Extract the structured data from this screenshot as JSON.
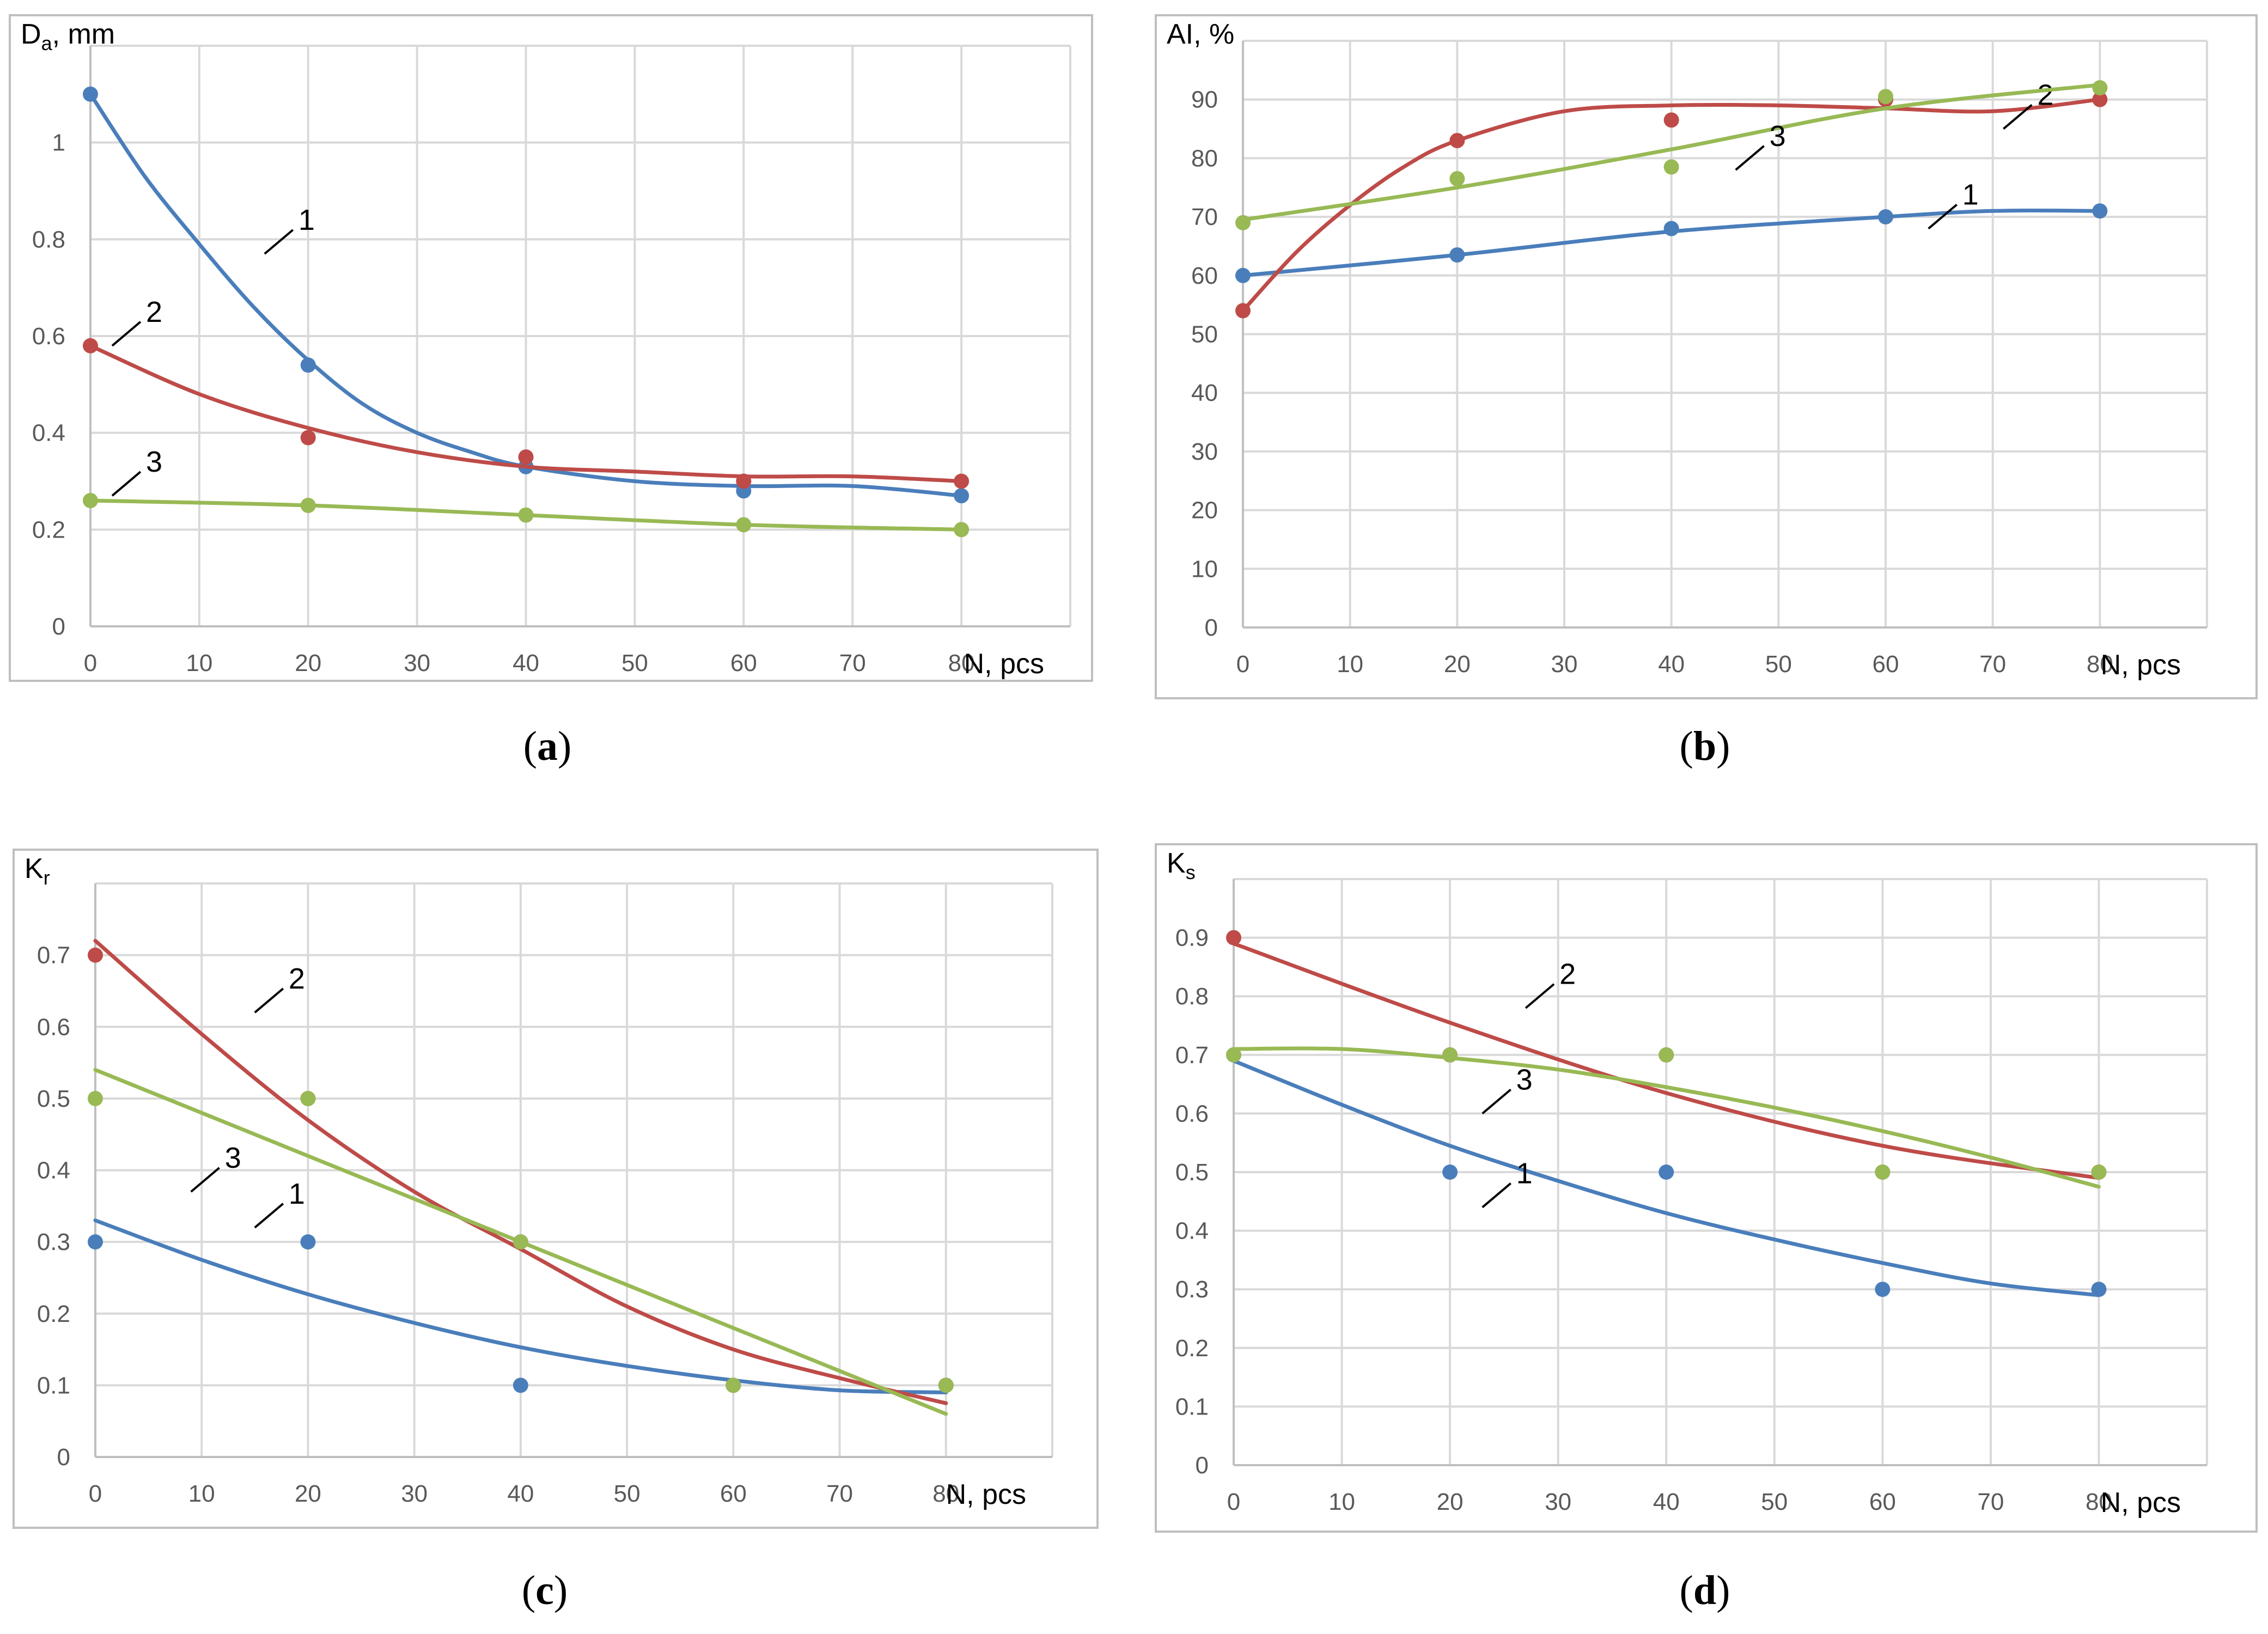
{
  "colors": {
    "series1": "#4a7ebb",
    "series2": "#be4b48",
    "series3": "#98b954"
  },
  "chart_data": [
    {
      "type": "scatter",
      "panel": "a",
      "caption": {
        "open": "(",
        "letter": "a",
        "close": ")"
      },
      "ylabel": {
        "main": "D",
        "sub": "a",
        "rest": ", mm"
      },
      "xlabel": "N, pcs",
      "xlim": [
        0,
        90
      ],
      "ylim": [
        0,
        1.2
      ],
      "xticks": [
        0,
        10,
        20,
        30,
        40,
        50,
        60,
        70,
        80
      ],
      "yticks": [
        0,
        0.2,
        0.4,
        0.6,
        0.8,
        1
      ],
      "ytick_labels": [
        "0",
        "0.2",
        "0.4",
        "0.6",
        "0.8",
        "1"
      ],
      "series": [
        {
          "name": "1",
          "color_key": "series1",
          "points": [
            [
              0,
              1.1
            ],
            [
              20,
              0.54
            ],
            [
              40,
              0.33
            ],
            [
              60,
              0.28
            ],
            [
              80,
              0.27
            ]
          ],
          "trend": [
            [
              0,
              1.1
            ],
            [
              5,
              0.93
            ],
            [
              10,
              0.79
            ],
            [
              15,
              0.66
            ],
            [
              20,
              0.55
            ],
            [
              25,
              0.46
            ],
            [
              30,
              0.4
            ],
            [
              35,
              0.36
            ],
            [
              40,
              0.33
            ],
            [
              50,
              0.3
            ],
            [
              60,
              0.29
            ],
            [
              70,
              0.29
            ],
            [
              80,
              0.27
            ]
          ],
          "label_at": [
            16,
            0.77
          ]
        },
        {
          "name": "2",
          "color_key": "series2",
          "points": [
            [
              0,
              0.58
            ],
            [
              20,
              0.39
            ],
            [
              40,
              0.35
            ],
            [
              60,
              0.3
            ],
            [
              80,
              0.3
            ]
          ],
          "trend": [
            [
              0,
              0.58
            ],
            [
              10,
              0.48
            ],
            [
              20,
              0.41
            ],
            [
              30,
              0.36
            ],
            [
              40,
              0.33
            ],
            [
              50,
              0.32
            ],
            [
              60,
              0.31
            ],
            [
              70,
              0.31
            ],
            [
              80,
              0.3
            ]
          ],
          "label_at": [
            2,
            0.58
          ]
        },
        {
          "name": "3",
          "color_key": "series3",
          "points": [
            [
              0,
              0.26
            ],
            [
              20,
              0.25
            ],
            [
              40,
              0.23
            ],
            [
              60,
              0.21
            ],
            [
              80,
              0.2
            ]
          ],
          "trend": [
            [
              0,
              0.26
            ],
            [
              20,
              0.25
            ],
            [
              40,
              0.23
            ],
            [
              60,
              0.21
            ],
            [
              80,
              0.2
            ]
          ],
          "label_at": [
            2,
            0.27
          ]
        }
      ]
    },
    {
      "type": "scatter",
      "panel": "b",
      "caption": {
        "open": "(",
        "letter": "b",
        "close": ")"
      },
      "ylabel": {
        "main": "AI, %",
        "sub": "",
        "rest": ""
      },
      "xlabel": "N, pcs",
      "xlim": [
        0,
        90
      ],
      "ylim": [
        0,
        100
      ],
      "xticks": [
        0,
        10,
        20,
        30,
        40,
        50,
        60,
        70,
        80
      ],
      "yticks": [
        0,
        10,
        20,
        30,
        40,
        50,
        60,
        70,
        80,
        90
      ],
      "ytick_labels": [
        "0",
        "10",
        "20",
        "30",
        "40",
        "50",
        "60",
        "70",
        "80",
        "90"
      ],
      "series": [
        {
          "name": "1",
          "color_key": "series1",
          "points": [
            [
              0,
              60
            ],
            [
              20,
              63.5
            ],
            [
              40,
              68
            ],
            [
              60,
              70
            ],
            [
              80,
              71
            ]
          ],
          "trend": [
            [
              0,
              60
            ],
            [
              20,
              63.5
            ],
            [
              40,
              67.5
            ],
            [
              60,
              70
            ],
            [
              70,
              71
            ],
            [
              80,
              71
            ]
          ],
          "label_at": [
            64,
            68
          ]
        },
        {
          "name": "2",
          "color_key": "series2",
          "points": [
            [
              0,
              54
            ],
            [
              20,
              83
            ],
            [
              40,
              86.5
            ],
            [
              60,
              90
            ],
            [
              80,
              90
            ]
          ],
          "trend": [
            [
              0,
              54
            ],
            [
              5,
              64
            ],
            [
              10,
              72
            ],
            [
              15,
              78.5
            ],
            [
              20,
              83
            ],
            [
              30,
              88
            ],
            [
              40,
              89
            ],
            [
              50,
              89
            ],
            [
              60,
              88.5
            ],
            [
              70,
              88
            ],
            [
              80,
              90
            ]
          ],
          "label_at": [
            71,
            85
          ]
        },
        {
          "name": "3",
          "color_key": "series3",
          "points": [
            [
              0,
              69
            ],
            [
              20,
              76.5
            ],
            [
              40,
              78.5
            ],
            [
              60,
              90.5
            ],
            [
              80,
              92
            ]
          ],
          "trend": [
            [
              0,
              69.5
            ],
            [
              20,
              75
            ],
            [
              40,
              81.5
            ],
            [
              60,
              88.5
            ],
            [
              80,
              92.5
            ]
          ],
          "label_at": [
            46,
            78
          ]
        }
      ]
    },
    {
      "type": "scatter",
      "panel": "c",
      "caption": {
        "open": "(",
        "letter": "c",
        "close": ")"
      },
      "ylabel": {
        "main": "K",
        "sub": "r",
        "rest": ""
      },
      "xlabel": "N, pcs",
      "xlim": [
        0,
        90
      ],
      "ylim": [
        0,
        0.8
      ],
      "xticks": [
        0,
        10,
        20,
        30,
        40,
        50,
        60,
        70,
        80
      ],
      "yticks": [
        0,
        0.1,
        0.2,
        0.3,
        0.4,
        0.5,
        0.6,
        0.7
      ],
      "ytick_labels": [
        "0",
        "0.1",
        "0.2",
        "0.3",
        "0.4",
        "0.5",
        "0.6",
        "0.7"
      ],
      "series": [
        {
          "name": "1",
          "color_key": "series1",
          "points": [
            [
              0,
              0.3
            ],
            [
              20,
              0.3
            ],
            [
              40,
              0.1
            ],
            [
              60,
              0.1
            ],
            [
              80,
              0.1
            ]
          ],
          "trend": [
            [
              0,
              0.33
            ],
            [
              10,
              0.275
            ],
            [
              20,
              0.227
            ],
            [
              30,
              0.187
            ],
            [
              40,
              0.153
            ],
            [
              50,
              0.127
            ],
            [
              60,
              0.107
            ],
            [
              70,
              0.093
            ],
            [
              80,
              0.09
            ]
          ],
          "label_at": [
            15,
            0.32
          ]
        },
        {
          "name": "2",
          "color_key": "series2",
          "points": [
            [
              0,
              0.7
            ],
            [
              20,
              0.5
            ],
            [
              40,
              0.3
            ],
            [
              60,
              0.1
            ],
            [
              80,
              0.1
            ]
          ],
          "trend": [
            [
              0,
              0.72
            ],
            [
              10,
              0.59
            ],
            [
              20,
              0.47
            ],
            [
              30,
              0.37
            ],
            [
              40,
              0.29
            ],
            [
              50,
              0.21
            ],
            [
              60,
              0.15
            ],
            [
              70,
              0.11
            ],
            [
              80,
              0.075
            ]
          ],
          "label_at": [
            15,
            0.62
          ]
        },
        {
          "name": "3",
          "color_key": "series3",
          "points": [
            [
              0,
              0.5
            ],
            [
              20,
              0.5
            ],
            [
              40,
              0.3
            ],
            [
              60,
              0.1
            ],
            [
              80,
              0.1
            ]
          ],
          "trend": [
            [
              0,
              0.54
            ],
            [
              20,
              0.42
            ],
            [
              40,
              0.3
            ],
            [
              60,
              0.18
            ],
            [
              80,
              0.06
            ]
          ],
          "label_at": [
            9,
            0.37
          ]
        }
      ]
    },
    {
      "type": "scatter",
      "panel": "d",
      "caption": {
        "open": "(",
        "letter": "d",
        "close": ")"
      },
      "ylabel": {
        "main": "K",
        "sub": "s",
        "rest": ""
      },
      "xlabel": "N, pcs",
      "xlim": [
        0,
        90
      ],
      "ylim": [
        0,
        1
      ],
      "xticks": [
        0,
        10,
        20,
        30,
        40,
        50,
        60,
        70,
        80
      ],
      "yticks": [
        0,
        0.1,
        0.2,
        0.3,
        0.4,
        0.5,
        0.6,
        0.7,
        0.8,
        0.9
      ],
      "ytick_labels": [
        "0",
        "0.1",
        "0.2",
        "0.3",
        "0.4",
        "0.5",
        "0.6",
        "0.7",
        "0.8",
        "0.9"
      ],
      "series": [
        {
          "name": "1",
          "color_key": "series1",
          "points": [
            [
              0,
              0.7
            ],
            [
              20,
              0.5
            ],
            [
              40,
              0.5
            ],
            [
              60,
              0.3
            ],
            [
              80,
              0.3
            ]
          ],
          "trend": [
            [
              0,
              0.69
            ],
            [
              10,
              0.615
            ],
            [
              20,
              0.545
            ],
            [
              30,
              0.485
            ],
            [
              40,
              0.43
            ],
            [
              50,
              0.385
            ],
            [
              60,
              0.345
            ],
            [
              70,
              0.31
            ],
            [
              80,
              0.29
            ]
          ],
          "label_at": [
            23,
            0.44
          ]
        },
        {
          "name": "2",
          "color_key": "series2",
          "points": [
            [
              0,
              0.9
            ],
            [
              20,
              0.7
            ],
            [
              40,
              0.7
            ],
            [
              60,
              0.5
            ],
            [
              80,
              0.5
            ]
          ],
          "trend": [
            [
              0,
              0.89
            ],
            [
              20,
              0.755
            ],
            [
              40,
              0.635
            ],
            [
              60,
              0.545
            ],
            [
              80,
              0.49
            ]
          ],
          "label_at": [
            27,
            0.78
          ]
        },
        {
          "name": "3",
          "color_key": "series3",
          "points": [
            [
              0,
              0.7
            ],
            [
              20,
              0.7
            ],
            [
              40,
              0.7
            ],
            [
              60,
              0.5
            ],
            [
              80,
              0.5
            ]
          ],
          "trend": [
            [
              0,
              0.71
            ],
            [
              10,
              0.71
            ],
            [
              20,
              0.695
            ],
            [
              30,
              0.675
            ],
            [
              40,
              0.645
            ],
            [
              50,
              0.61
            ],
            [
              60,
              0.57
            ],
            [
              70,
              0.525
            ],
            [
              80,
              0.475
            ]
          ],
          "label_at": [
            23,
            0.6
          ]
        }
      ]
    }
  ]
}
